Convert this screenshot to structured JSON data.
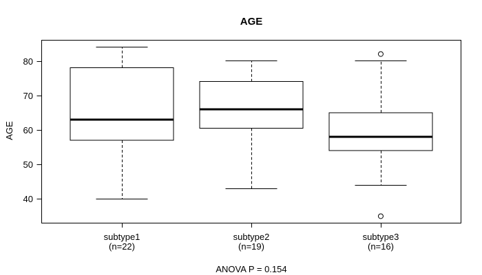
{
  "chart_data": {
    "type": "boxplot",
    "title": "AGE",
    "ylabel": "AGE",
    "annotation": "ANOVA P = 0.154",
    "yticks": [
      40,
      50,
      60,
      70,
      80
    ],
    "ylim": [
      33,
      86
    ],
    "grid": false,
    "orientation": "vertical",
    "groups": [
      {
        "label": "subtype1",
        "n_label": "(n=22)",
        "n": 22,
        "whisker_low": 40,
        "q1": 57,
        "median": 63,
        "q3": 78,
        "whisker_high": 84,
        "outliers": []
      },
      {
        "label": "subtype2",
        "n_label": "(n=19)",
        "n": 19,
        "whisker_low": 43,
        "q1": 60.5,
        "median": 66,
        "q3": 74,
        "whisker_high": 80,
        "outliers": []
      },
      {
        "label": "subtype3",
        "n_label": "(n=16)",
        "n": 16,
        "whisker_low": 44,
        "q1": 54,
        "median": 58,
        "q3": 65,
        "whisker_high": 80,
        "outliers": [
          82,
          35
        ]
      }
    ],
    "colors": {
      "line": "#000000",
      "box_fill": "#ffffff",
      "background": "#ffffff"
    }
  }
}
